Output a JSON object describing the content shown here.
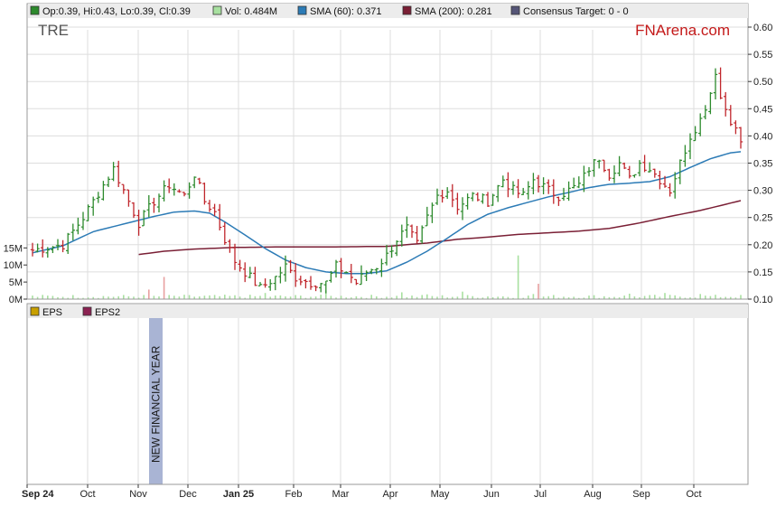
{
  "chart_data": {
    "type": "ohlc",
    "ticker": "TRE",
    "brand": "FNArena.com",
    "legend": [
      {
        "name": "Op:0.39, Hi:0.43, Lo:0.39, Cl:0.39",
        "color": "#2d8a2d"
      },
      {
        "name": "Vol: 0.484M",
        "color": "#a8e0a0"
      },
      {
        "name": "SMA (60): 0.371",
        "color": "#2c7bb6"
      },
      {
        "name": "SMA (200): 0.281",
        "color": "#7a1f35"
      },
      {
        "name": "Consensus Target: 0 - 0",
        "color": "#555577"
      }
    ],
    "lower_legend": [
      {
        "name": "EPS",
        "color": "#c8a000"
      },
      {
        "name": "EPS2",
        "color": "#8b2252"
      }
    ],
    "annotation": "NEW FINANCIAL YEAR",
    "x_tick_labels": [
      "Sep 24",
      "Oct",
      "Nov",
      "Dec",
      "Jan 25",
      "Feb",
      "Mar",
      "Apr",
      "May",
      "Jun",
      "Jul",
      "Aug",
      "Sep",
      "Oct"
    ],
    "y_tick_labels": [
      "0.60",
      "0.55",
      "0.50",
      "0.45",
      "0.40",
      "0.35",
      "0.30",
      "0.25",
      "0.20",
      "0.15",
      "0.10"
    ],
    "ylim": [
      0.1,
      0.6
    ],
    "volume_tick_labels": [
      "15M",
      "10M",
      "5M",
      "0M"
    ],
    "volume_max": 18,
    "colors": {
      "up": "#2d8a2d",
      "down": "#c0262c",
      "sma60": "#2c7bb6",
      "sma200": "#7a1f35",
      "volume": "#a8e0a0",
      "volume_spike": "#e8a0a0",
      "grid": "#dddddd",
      "band": "#a9b4d4"
    },
    "price_keypoints": [
      [
        0,
        0.19
      ],
      [
        6,
        0.2
      ],
      [
        10,
        0.25
      ],
      [
        14,
        0.31
      ],
      [
        16,
        0.34
      ],
      [
        19,
        0.28
      ],
      [
        21,
        0.24
      ],
      [
        24,
        0.28
      ],
      [
        27,
        0.31
      ],
      [
        30,
        0.29
      ],
      [
        32,
        0.33
      ],
      [
        34,
        0.28
      ],
      [
        36,
        0.26
      ],
      [
        38,
        0.21
      ],
      [
        40,
        0.17
      ],
      [
        43,
        0.14
      ],
      [
        45,
        0.12
      ],
      [
        48,
        0.14
      ],
      [
        50,
        0.16
      ],
      [
        52,
        0.14
      ],
      [
        55,
        0.13
      ],
      [
        58,
        0.13
      ],
      [
        60,
        0.16
      ],
      [
        62,
        0.15
      ],
      [
        64,
        0.13
      ],
      [
        66,
        0.15
      ],
      [
        68,
        0.16
      ],
      [
        70,
        0.18
      ],
      [
        72,
        0.21
      ],
      [
        74,
        0.23
      ],
      [
        76,
        0.2
      ],
      [
        78,
        0.25
      ],
      [
        80,
        0.29
      ],
      [
        82,
        0.3
      ],
      [
        84,
        0.27
      ],
      [
        87,
        0.29
      ],
      [
        90,
        0.28
      ],
      [
        93,
        0.32
      ],
      [
        95,
        0.3
      ],
      [
        97,
        0.29
      ],
      [
        99,
        0.32
      ],
      [
        102,
        0.3
      ],
      [
        104,
        0.29
      ],
      [
        106,
        0.3
      ],
      [
        108,
        0.31
      ],
      [
        110,
        0.34
      ],
      [
        112,
        0.36
      ],
      [
        114,
        0.33
      ],
      [
        116,
        0.35
      ],
      [
        118,
        0.32
      ],
      [
        120,
        0.35
      ],
      [
        122,
        0.34
      ],
      [
        124,
        0.32
      ],
      [
        126,
        0.3
      ],
      [
        128,
        0.35
      ],
      [
        130,
        0.4
      ],
      [
        132,
        0.43
      ],
      [
        134,
        0.48
      ],
      [
        135,
        0.52
      ],
      [
        136,
        0.47
      ],
      [
        138,
        0.43
      ],
      [
        140,
        0.39
      ]
    ],
    "sma60_keypoints": [
      [
        0,
        0.185
      ],
      [
        6,
        0.198
      ],
      [
        12,
        0.224
      ],
      [
        18,
        0.238
      ],
      [
        24,
        0.252
      ],
      [
        28,
        0.26
      ],
      [
        32,
        0.262
      ],
      [
        35,
        0.258
      ],
      [
        38,
        0.242
      ],
      [
        42,
        0.218
      ],
      [
        46,
        0.193
      ],
      [
        50,
        0.172
      ],
      [
        54,
        0.158
      ],
      [
        58,
        0.15
      ],
      [
        62,
        0.147
      ],
      [
        66,
        0.147
      ],
      [
        70,
        0.152
      ],
      [
        74,
        0.168
      ],
      [
        78,
        0.188
      ],
      [
        82,
        0.212
      ],
      [
        86,
        0.237
      ],
      [
        90,
        0.256
      ],
      [
        94,
        0.268
      ],
      [
        98,
        0.278
      ],
      [
        102,
        0.288
      ],
      [
        106,
        0.296
      ],
      [
        110,
        0.305
      ],
      [
        114,
        0.311
      ],
      [
        118,
        0.313
      ],
      [
        122,
        0.316
      ],
      [
        126,
        0.325
      ],
      [
        130,
        0.342
      ],
      [
        134,
        0.358
      ],
      [
        138,
        0.369
      ],
      [
        140,
        0.371
      ]
    ],
    "sma200_keypoints": [
      [
        21,
        0.182
      ],
      [
        26,
        0.188
      ],
      [
        32,
        0.192
      ],
      [
        40,
        0.195
      ],
      [
        50,
        0.196
      ],
      [
        60,
        0.196
      ],
      [
        70,
        0.197
      ],
      [
        78,
        0.203
      ],
      [
        84,
        0.21
      ],
      [
        90,
        0.214
      ],
      [
        96,
        0.219
      ],
      [
        102,
        0.222
      ],
      [
        108,
        0.225
      ],
      [
        114,
        0.23
      ],
      [
        120,
        0.24
      ],
      [
        126,
        0.252
      ],
      [
        132,
        0.263
      ],
      [
        136,
        0.272
      ],
      [
        140,
        0.281
      ]
    ],
    "volume_spikes": [
      {
        "index": 23,
        "value": 2.8,
        "up": false
      },
      {
        "index": 26,
        "value": 6.5,
        "up": false
      },
      {
        "index": 46,
        "value": 1.8,
        "up": true
      },
      {
        "index": 58,
        "value": 2.5,
        "up": true
      },
      {
        "index": 73,
        "value": 2.0,
        "up": true
      },
      {
        "index": 78,
        "value": 1.4,
        "up": true
      },
      {
        "index": 85,
        "value": 2.2,
        "up": true
      },
      {
        "index": 96,
        "value": 12.8,
        "up": true
      },
      {
        "index": 99,
        "value": 1.5,
        "up": true
      },
      {
        "index": 100,
        "value": 4.5,
        "up": false
      },
      {
        "index": 118,
        "value": 1.6,
        "up": true
      },
      {
        "index": 125,
        "value": 1.8,
        "up": true
      },
      {
        "index": 132,
        "value": 1.5,
        "up": true
      }
    ]
  }
}
